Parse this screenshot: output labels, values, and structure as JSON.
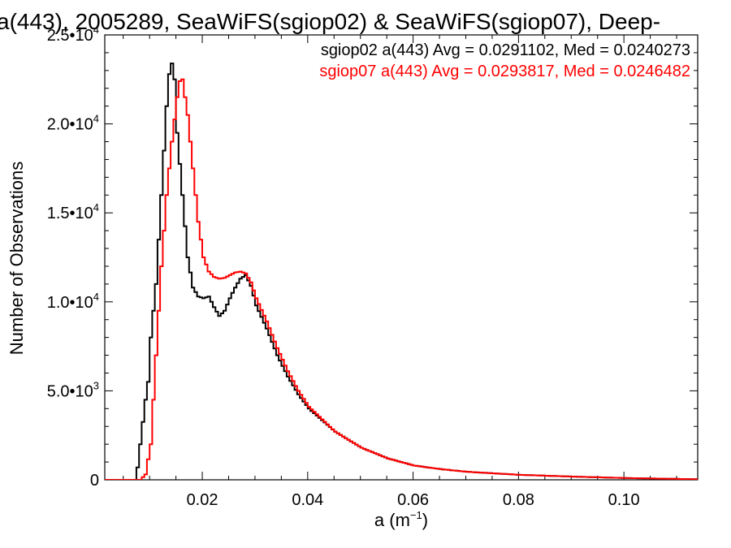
{
  "chart_data": {
    "type": "line",
    "title": "a(443), 2005289, SeaWiFS(sgiop02) & SeaWiFS(sgiop07), Deep-",
    "xlabel_base": "a (m",
    "xlabel_sup": "−1",
    "xlabel_close": ")",
    "ylabel": "Number of Observations",
    "xlim": [
      0.0015,
      0.114
    ],
    "ylim": [
      0,
      25000
    ],
    "x_ticks": [
      {
        "value": 0.02,
        "label": "0.02"
      },
      {
        "value": 0.04,
        "label": "0.04"
      },
      {
        "value": 0.06,
        "label": "0.06"
      },
      {
        "value": 0.08,
        "label": "0.08"
      },
      {
        "value": 0.1,
        "label": "0.10"
      }
    ],
    "y_ticks": [
      {
        "value": 0,
        "mant": "0",
        "exp": ""
      },
      {
        "value": 5000,
        "mant": "5.0•10",
        "exp": "3"
      },
      {
        "value": 10000,
        "mant": "1.0•10",
        "exp": "4"
      },
      {
        "value": 15000,
        "mant": "1.5•10",
        "exp": "4"
      },
      {
        "value": 20000,
        "mant": "2.0•10",
        "exp": "4"
      },
      {
        "value": 25000,
        "mant": "2.5•10",
        "exp": "4"
      }
    ],
    "series": [
      {
        "name": "sgiop02 a(443) Avg = 0.0291102, Med = 0.0240273",
        "color": "#000000",
        "x": [
          0.0015,
          0.007,
          0.0075,
          0.008,
          0.009,
          0.0095,
          0.01,
          0.011,
          0.012,
          0.013,
          0.0135,
          0.014,
          0.0145,
          0.015,
          0.016,
          0.017,
          0.018,
          0.019,
          0.02,
          0.021,
          0.022,
          0.023,
          0.024,
          0.025,
          0.026,
          0.027,
          0.028,
          0.029,
          0.03,
          0.032,
          0.034,
          0.036,
          0.038,
          0.04,
          0.045,
          0.05,
          0.055,
          0.06,
          0.065,
          0.07,
          0.08,
          0.09,
          0.1,
          0.11,
          0.114
        ],
        "y": [
          0,
          0,
          700,
          2000,
          4500,
          5500,
          8000,
          11000,
          16000,
          21000,
          22800,
          23400,
          22500,
          19500,
          16000,
          12500,
          10800,
          10300,
          10200,
          10300,
          9700,
          9200,
          9500,
          10200,
          10800,
          11300,
          11500,
          10900,
          9800,
          8500,
          7000,
          5800,
          4800,
          4000,
          2700,
          1800,
          1200,
          800,
          600,
          450,
          280,
          180,
          100,
          50,
          30
        ]
      },
      {
        "name": "sgiop07 a(443) Avg = 0.0293817, Med = 0.0246482",
        "color": "#ff0000",
        "x": [
          0.0015,
          0.008,
          0.009,
          0.01,
          0.011,
          0.012,
          0.013,
          0.014,
          0.015,
          0.0155,
          0.016,
          0.017,
          0.018,
          0.019,
          0.02,
          0.021,
          0.022,
          0.023,
          0.024,
          0.025,
          0.026,
          0.027,
          0.028,
          0.029,
          0.03,
          0.032,
          0.034,
          0.036,
          0.038,
          0.04,
          0.045,
          0.05,
          0.055,
          0.06,
          0.065,
          0.07,
          0.08,
          0.09,
          0.1,
          0.11,
          0.114
        ],
        "y": [
          0,
          0,
          300,
          2000,
          7000,
          12000,
          16000,
          19000,
          21500,
          22400,
          22500,
          20500,
          17500,
          14500,
          12500,
          11700,
          11400,
          11300,
          11350,
          11500,
          11650,
          11700,
          11600,
          11100,
          10200,
          8900,
          7400,
          6100,
          5000,
          4100,
          2700,
          1800,
          1200,
          800,
          600,
          450,
          280,
          180,
          100,
          50,
          30
        ]
      }
    ]
  }
}
